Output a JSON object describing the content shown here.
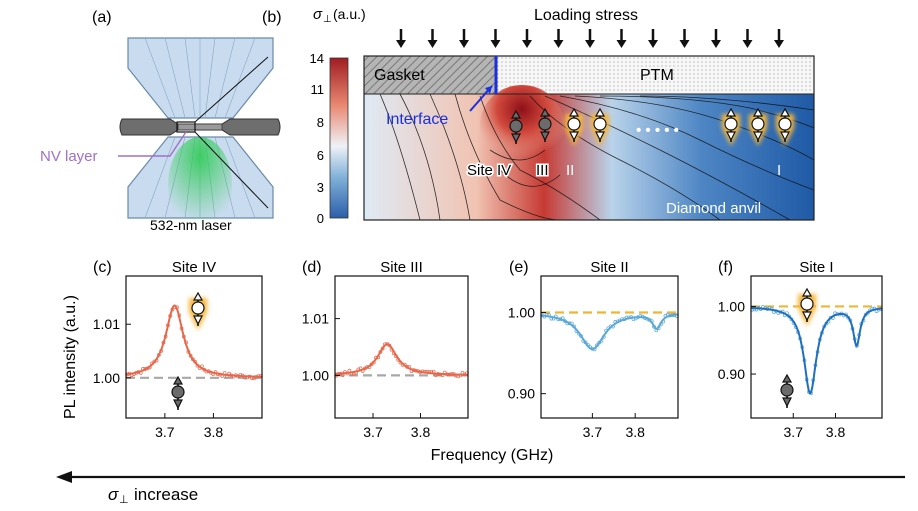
{
  "panel_labels": [
    "(a)",
    "(b)",
    "(c)",
    "(d)",
    "(e)",
    "(f)"
  ],
  "panel_a": {
    "nv_label": "NV layer",
    "laser_label": "532-nm laser"
  },
  "panel_b": {
    "colorbar_symbol": "σ",
    "colorbar_subscript": "⊥",
    "colorbar_unit": "(a.u.)",
    "colorbar_ticks": [
      "14",
      "11",
      "8",
      "6",
      "3",
      "0"
    ],
    "loading_stress": "Loading stress",
    "gasket": "Gasket",
    "ptm": "PTM",
    "interface": "Interface",
    "diamond_anvil": "Diamond anvil",
    "site_labels": [
      "Site IV",
      "III",
      "II",
      "I"
    ],
    "dots": "• • • • •"
  },
  "spectra": {
    "ylabel": "PL intensity (a.u.)",
    "xlabel": "Frequency (GHz)",
    "panels": [
      {
        "title": "Site IV",
        "yticks": [
          "1.01",
          "1.00"
        ],
        "xticks": [
          "3.7",
          "3.8"
        ]
      },
      {
        "title": "Site III",
        "yticks": [
          "1.01",
          "1.00"
        ],
        "xticks": [
          "3.7",
          "3.8"
        ]
      },
      {
        "title": "Site II",
        "yticks": [
          "1.00",
          "0.90"
        ],
        "xticks": [
          "3.7",
          "3.8"
        ]
      },
      {
        "title": "Site I",
        "yticks": [
          "1.00",
          "0.90"
        ],
        "xticks": [
          "3.7",
          "3.8"
        ]
      }
    ]
  },
  "bottom": {
    "sigma": "σ",
    "subscript": "⊥",
    "label": "increase"
  },
  "colors": {
    "fit_red": "#e8664a",
    "fit_blue": "#1f6fc0",
    "fit_lightblue": "#5aa8d8",
    "ref_gray": "#a8a8a8",
    "ref_yellow": "#f2b533",
    "interface_blue": "#1a2fe0",
    "nv_purple": "#a070c8",
    "laser_green": "#3cc85a"
  },
  "chart_data": [
    {
      "type": "line",
      "title": "Site IV",
      "xlabel": "Frequency (GHz)",
      "ylabel": "PL intensity (a.u.)",
      "xlim": [
        3.62,
        3.9
      ],
      "ylim": [
        0.9925,
        1.019
      ],
      "series": [
        {
          "values": "Lorentzian peak",
          "center": 3.72,
          "amplitude": 0.0135,
          "baseline": 1.0
        }
      ]
    },
    {
      "type": "line",
      "title": "Site III",
      "xlim": [
        3.62,
        3.9
      ],
      "ylim": [
        0.9925,
        1.0175
      ],
      "series": [
        {
          "center": 3.73,
          "amplitude": 0.0055,
          "baseline": 1.0
        }
      ]
    },
    {
      "type": "line",
      "title": "Site II",
      "xlim": [
        3.58,
        3.9
      ],
      "ylim": [
        0.87,
        1.045
      ],
      "series": [
        {
          "dips": [
            {
              "center": 3.7,
              "depth": 0.045
            },
            {
              "center": 3.85,
              "depth": 0.02
            }
          ],
          "baseline": 1.0
        }
      ]
    },
    {
      "type": "line",
      "title": "Site I",
      "xlim": [
        3.6,
        3.91
      ],
      "ylim": [
        0.835,
        1.045
      ],
      "series": [
        {
          "dips": [
            {
              "center": 3.74,
              "depth": 0.128
            },
            {
              "center": 3.85,
              "depth": 0.055
            }
          ],
          "baseline": 1.0
        }
      ]
    }
  ]
}
